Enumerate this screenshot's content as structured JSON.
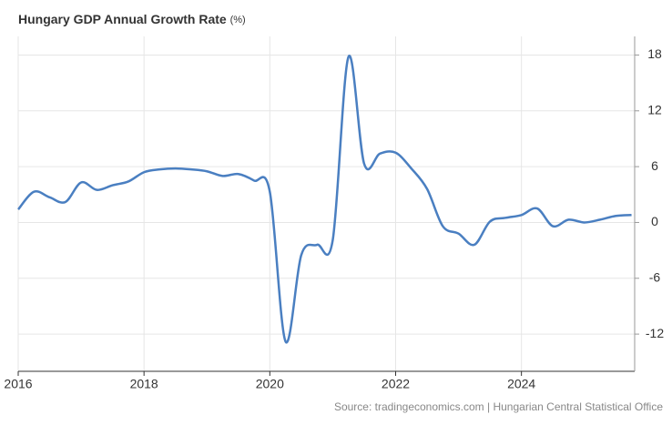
{
  "chart_data": {
    "type": "line",
    "title": "Hungary GDP Annual Growth Rate",
    "unit": "(%)",
    "source": "Source: tradingeconomics.com | Hungarian Central Statistical Office",
    "x": [
      2016,
      2016.25,
      2016.5,
      2016.75,
      2017,
      2017.25,
      2017.5,
      2017.75,
      2018,
      2018.25,
      2018.5,
      2018.75,
      2019,
      2019.25,
      2019.5,
      2019.75,
      2020,
      2020.25,
      2020.5,
      2020.75,
      2021,
      2021.25,
      2021.5,
      2021.75,
      2022,
      2022.25,
      2022.5,
      2022.75,
      2023,
      2023.25,
      2023.5,
      2023.75,
      2024,
      2024.25,
      2024.5,
      2024.75,
      2025,
      2025.25,
      2025.5,
      2025.75
    ],
    "series": [
      {
        "name": "GDP Annual Growth Rate",
        "color": "#4a7fc1",
        "values": [
          1.4,
          3.3,
          2.7,
          2.2,
          4.3,
          3.5,
          4.0,
          4.4,
          5.4,
          5.7,
          5.8,
          5.7,
          5.5,
          5.0,
          5.2,
          4.5,
          3.3,
          -12.8,
          -3.5,
          -2.4,
          -1.9,
          17.8,
          6.3,
          7.4,
          7.5,
          5.8,
          3.6,
          -0.4,
          -1.2,
          -2.4,
          0.1,
          0.5,
          0.8,
          1.5,
          -0.4,
          0.3,
          0.0,
          0.3,
          0.7,
          0.8
        ]
      }
    ],
    "xlim": [
      2016,
      2025.8
    ],
    "xticks": [
      2016,
      2018,
      2020,
      2022,
      2024
    ],
    "ylim": [
      -16,
      20
    ],
    "yticks": [
      -12,
      -6,
      0,
      6,
      12,
      18
    ],
    "grid": true
  }
}
